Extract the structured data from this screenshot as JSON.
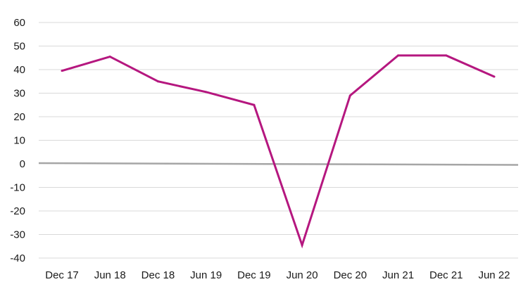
{
  "chart_data": {
    "type": "line",
    "title": "",
    "xlabel": "",
    "ylabel": "",
    "categories": [
      "Dec 17",
      "Jun 18",
      "Dec 18",
      "Jun 19",
      "Dec 19",
      "Jun 20",
      "Dec 20",
      "Jun 21",
      "Dec 21",
      "Jun 22"
    ],
    "ylim": [
      -40,
      60
    ],
    "yticks": [
      "60",
      "50",
      "40",
      "30",
      "20",
      "10",
      "0",
      "-10",
      "-20",
      "-30",
      "-40"
    ],
    "grid": true,
    "legend": "none",
    "series": [
      {
        "color": "#b5177f",
        "values": [
          39.5,
          45.5,
          35,
          30.5,
          25,
          -34.5,
          29,
          46,
          46,
          37
        ]
      }
    ],
    "zero_line_color": "#a6a6a6"
  }
}
